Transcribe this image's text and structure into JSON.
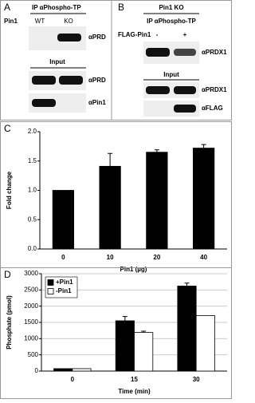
{
  "panel_a": {
    "label": "A",
    "ip": "IP αPhospho-TP",
    "row_label": "Pin1",
    "lanes": [
      "WT",
      "KO"
    ],
    "ip_blot": "αPRD",
    "input": "Input",
    "input_blots": [
      "αPRD",
      "αPin1"
    ]
  },
  "panel_b": {
    "label": "B",
    "title": "Pin1 KO",
    "ip": "IP αPhospho-TP",
    "row_label": "FLAG-Pin1",
    "lanes": [
      "-",
      "+"
    ],
    "ip_blot": "αPRDX1",
    "input": "Input",
    "input_blots": [
      "αPRDX1",
      "αFLAG"
    ]
  },
  "chart_data": [
    {
      "type": "bar",
      "panel": "C",
      "xlabel": "Pin1 (µg)",
      "ylabel": "Fold change",
      "categories": [
        "0",
        "10",
        "20",
        "40"
      ],
      "series": [
        {
          "color": "#000000",
          "values": [
            1.0,
            1.41,
            1.65,
            1.72
          ],
          "errors": [
            0,
            0.22,
            0.04,
            0.06
          ]
        }
      ],
      "ylim": [
        0,
        2
      ],
      "yticks": [
        {
          "value": 0,
          "label": "0.0"
        },
        {
          "value": 0.5,
          "label": "0.5"
        },
        {
          "value": 1,
          "label": "1.0"
        },
        {
          "value": 1.5,
          "label": "1.5"
        },
        {
          "value": 2,
          "label": "2.0"
        }
      ],
      "grid": false
    },
    {
      "type": "bar",
      "panel": "D",
      "xlabel": "Time (min)",
      "ylabel": "Phosphate (pmol)",
      "categories": [
        "0",
        "15",
        "30"
      ],
      "series": [
        {
          "name": "+Pin1",
          "color": "#000000",
          "values": [
            75,
            1550,
            2620
          ],
          "errors": [
            0,
            130,
            90
          ]
        },
        {
          "name": "-Pin1",
          "color": "#ffffff",
          "values": [
            75,
            1190,
            1710
          ],
          "errors": [
            0,
            40,
            0
          ]
        }
      ],
      "ylim": [
        0,
        3000
      ],
      "yticks": [
        0,
        500,
        1000,
        1500,
        2000,
        2500,
        3000
      ],
      "grid": true,
      "legend": "top-left"
    }
  ]
}
